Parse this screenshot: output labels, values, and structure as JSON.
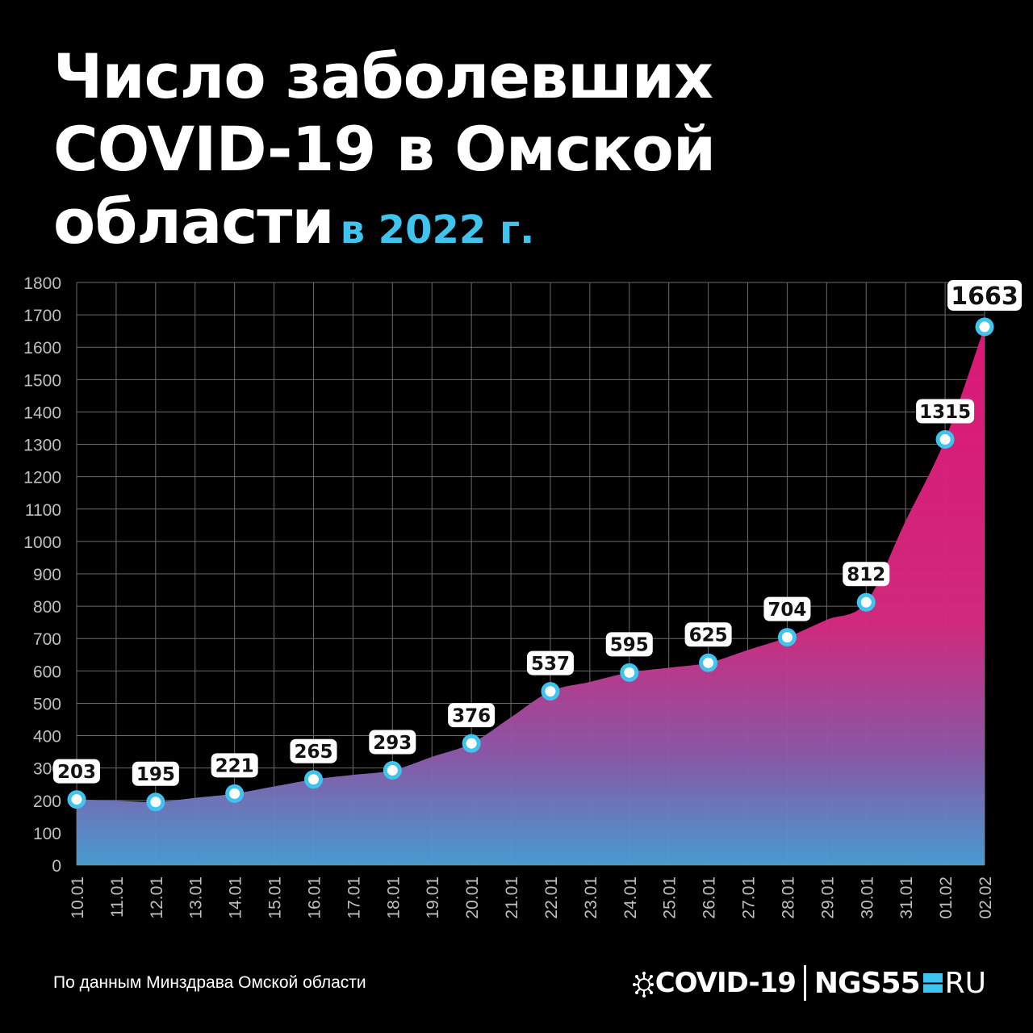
{
  "header": {
    "title_line1": "Число заболевших",
    "title_line2": "COVID-19 в Омской",
    "title_line3": "области",
    "title_accent": "в 2022 г.",
    "accent_color": "#3fc3ef"
  },
  "footer": {
    "source": "По данным Минздрава Омской области",
    "brand_covid": "COVID-19",
    "brand_ngs": "NGS55",
    "brand_ru": "RU",
    "virus_icon": "virus-icon"
  },
  "chart_data": {
    "type": "area",
    "title": "Число заболевших COVID-19 в Омской области в 2022 г.",
    "x": [
      "10.01",
      "11.01",
      "12.01",
      "13.01",
      "14.01",
      "15.01",
      "16.01",
      "17.01",
      "18.01",
      "19.01",
      "20.01",
      "21.01",
      "22.01",
      "23.01",
      "24.01",
      "25.01",
      "26.01",
      "27.01",
      "28.01",
      "29.01",
      "30.01",
      "31.01",
      "01.02",
      "02.02"
    ],
    "labeled_points": [
      {
        "x": "10.01",
        "y": 203
      },
      {
        "x": "12.01",
        "y": 195
      },
      {
        "x": "14.01",
        "y": 221
      },
      {
        "x": "16.01",
        "y": 265
      },
      {
        "x": "18.01",
        "y": 293
      },
      {
        "x": "20.01",
        "y": 376
      },
      {
        "x": "22.01",
        "y": 537
      },
      {
        "x": "24.01",
        "y": 595
      },
      {
        "x": "26.01",
        "y": 625
      },
      {
        "x": "28.01",
        "y": 704
      },
      {
        "x": "30.01",
        "y": 812
      },
      {
        "x": "01.02",
        "y": 1315
      },
      {
        "x": "02.02",
        "y": 1663
      }
    ],
    "ylim": [
      0,
      1800
    ],
    "yticks": [
      0,
      100,
      200,
      300,
      400,
      500,
      600,
      700,
      800,
      900,
      1000,
      1100,
      1200,
      1300,
      1400,
      1500,
      1600,
      1700,
      1800
    ],
    "grid": true,
    "colors": {
      "area_top": "#e2187a",
      "area_bottom": "#4a9fd6",
      "marker": "#3fc3ef",
      "grid": "#6a6a6a"
    }
  }
}
